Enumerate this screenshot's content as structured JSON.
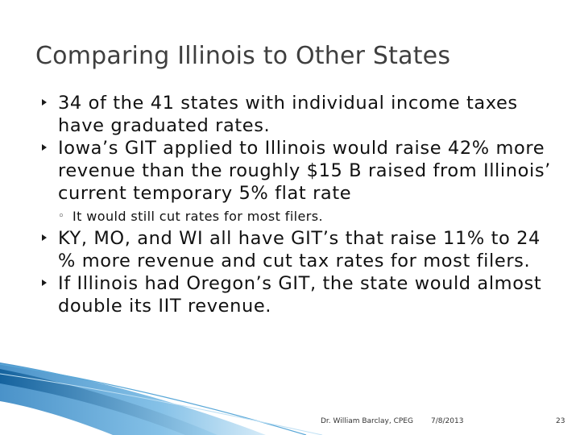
{
  "slide": {
    "title": "Comparing Illinois to Other States",
    "bullets": [
      {
        "text": "34 of the 41 states with individual income taxes have graduated rates."
      },
      {
        "text": "Iowa’s GIT applied to Illinois would raise 42% more revenue than the roughly $15 B raised from Illinois’ current temporary 5% flat rate",
        "sub": "It would still cut rates for most filers."
      },
      {
        "text": "KY, MO, and WI all have GIT’s that raise 11% to 24 % more revenue and cut tax rates for most filers."
      },
      {
        "text": "If Illinois had Oregon’s GIT, the state would almost double its IIT revenue."
      }
    ],
    "footer": {
      "author": "Dr. William Barclay, CPEG",
      "date": "7/8/2013",
      "page": "23"
    }
  },
  "colors": {
    "title": "#3f3f3f",
    "accent_dark": "#1f6fa8",
    "accent_light": "#a8d4ef"
  }
}
